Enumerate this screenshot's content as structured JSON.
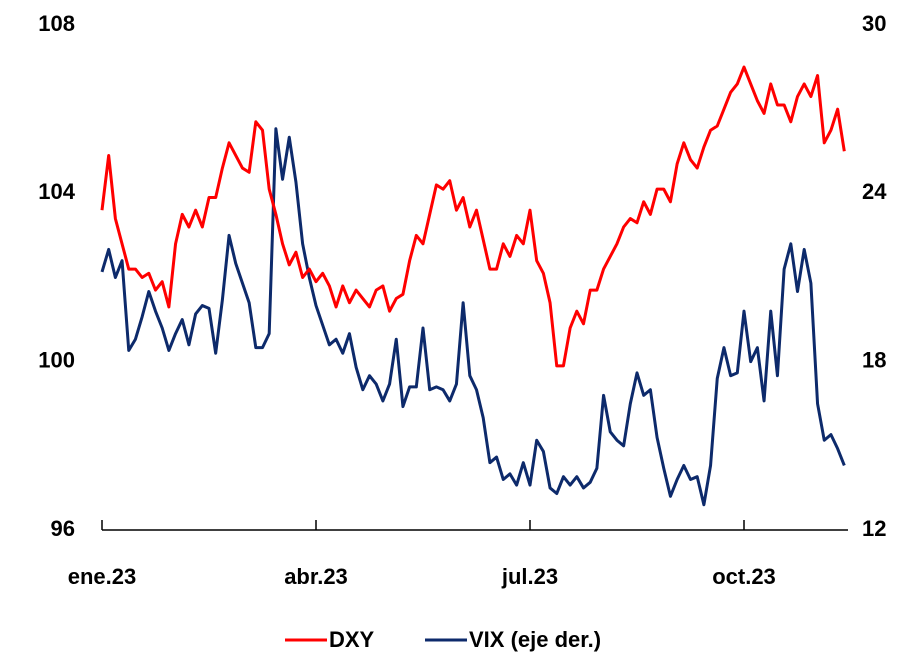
{
  "chart_data": {
    "type": "line",
    "categories": [
      "ene.23",
      null,
      null,
      null,
      null,
      null,
      null,
      null,
      null,
      null,
      null,
      null,
      null,
      null,
      null,
      null,
      null,
      null,
      null,
      null,
      null,
      null,
      null,
      null,
      null,
      null,
      null,
      null,
      null,
      null,
      null,
      null,
      "abr.23",
      null,
      null,
      null,
      null,
      null,
      null,
      null,
      null,
      null,
      null,
      null,
      null,
      null,
      null,
      null,
      null,
      null,
      null,
      null,
      null,
      null,
      null,
      null,
      null,
      null,
      null,
      null,
      null,
      null,
      null,
      null,
      "jul.23",
      null,
      null,
      null,
      null,
      null,
      null,
      null,
      null,
      null,
      null,
      null,
      null,
      null,
      null,
      null,
      null,
      null,
      null,
      null,
      null,
      null,
      null,
      null,
      null,
      null,
      null,
      null,
      null,
      null,
      null,
      null,
      "oct.23",
      null,
      null,
      null,
      null,
      null,
      null,
      null,
      null,
      null,
      null,
      null,
      null,
      null,
      null,
      null
    ],
    "series": [
      {
        "name": "DXY",
        "color": "#ff0000",
        "values": [
          103.6,
          104.9,
          103.4,
          102.8,
          102.2,
          102.2,
          102.0,
          102.1,
          101.7,
          101.9,
          101.3,
          102.8,
          103.5,
          103.2,
          103.6,
          103.2,
          103.9,
          103.9,
          104.6,
          105.2,
          104.9,
          104.6,
          104.5,
          105.7,
          105.5,
          104.1,
          103.5,
          102.8,
          102.3,
          102.6,
          102.0,
          102.2,
          101.9,
          102.1,
          101.8,
          101.3,
          101.8,
          101.4,
          101.7,
          101.5,
          101.3,
          101.7,
          101.8,
          101.2,
          101.5,
          101.6,
          102.4,
          103.0,
          102.8,
          103.5,
          104.2,
          104.1,
          104.3,
          103.6,
          103.9,
          103.2,
          103.6,
          102.9,
          102.2,
          102.2,
          102.8,
          102.5,
          103.0,
          102.8,
          103.6,
          102.4,
          102.1,
          101.4,
          99.9,
          99.9,
          100.8,
          101.2,
          100.9,
          101.7,
          101.7,
          102.2,
          102.5,
          102.8,
          103.2,
          103.4,
          103.3,
          103.8,
          103.5,
          104.1,
          104.1,
          103.8,
          104.7,
          105.2,
          104.8,
          104.6,
          105.1,
          105.5,
          105.6,
          106.0,
          106.4,
          106.6,
          107.0,
          106.6,
          106.2,
          105.9,
          106.6,
          106.1,
          106.1,
          105.7,
          106.3,
          106.6,
          106.3,
          106.8,
          105.2,
          105.5,
          106.0,
          105.0
        ]
      },
      {
        "name": "VIX (eje der.)",
        "color": "#0d2a6b",
        "axis": "y2",
        "values": [
          21.2,
          22.0,
          21.0,
          21.6,
          18.4,
          18.8,
          19.6,
          20.5,
          19.8,
          19.2,
          18.4,
          19.0,
          19.5,
          18.6,
          19.7,
          20.0,
          19.9,
          18.3,
          20.2,
          22.5,
          21.5,
          20.8,
          20.1,
          18.5,
          18.5,
          19.0,
          26.3,
          24.5,
          26.0,
          24.4,
          22.2,
          21.0,
          20.0,
          19.3,
          18.6,
          18.8,
          18.3,
          19.0,
          17.8,
          17.0,
          17.5,
          17.2,
          16.6,
          17.2,
          18.8,
          16.4,
          17.1,
          17.1,
          19.2,
          17.0,
          17.1,
          17.0,
          16.6,
          17.2,
          20.1,
          17.5,
          17.0,
          16.0,
          14.4,
          14.6,
          13.8,
          14.0,
          13.6,
          14.4,
          13.6,
          15.2,
          14.8,
          13.5,
          13.3,
          13.9,
          13.6,
          13.9,
          13.5,
          13.7,
          14.2,
          16.8,
          15.5,
          15.2,
          15.0,
          16.5,
          17.6,
          16.8,
          17.0,
          15.3,
          14.2,
          13.2,
          13.8,
          14.3,
          13.8,
          13.9,
          12.9,
          14.3,
          17.4,
          18.5,
          17.5,
          17.6,
          19.8,
          18.0,
          18.5,
          16.6,
          19.8,
          17.5,
          21.3,
          22.2,
          20.5,
          22.0,
          20.8,
          16.5,
          15.2,
          15.4,
          14.9,
          14.3
        ]
      }
    ],
    "ylim": [
      96,
      108
    ],
    "yticks": [
      96,
      100,
      104,
      108
    ],
    "y2lim": [
      12,
      30
    ],
    "y2ticks": [
      12,
      18,
      24,
      30
    ],
    "grid": false,
    "legend": "bottom"
  }
}
